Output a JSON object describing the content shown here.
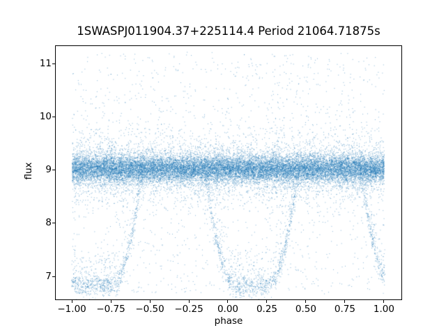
{
  "chart_data": {
    "type": "scatter",
    "title": "1SWASPJ011904.37+225114.4 Period 21064.71875s",
    "xlabel": "phase",
    "ylabel": "flux",
    "xlim": [
      -1.103,
      1.112
    ],
    "ylim": [
      6.57,
      11.33
    ],
    "grid": false,
    "legend": "none",
    "xticks": {
      "values": [
        -1.0,
        -0.75,
        -0.5,
        -0.25,
        0.0,
        0.25,
        0.5,
        0.75,
        1.0
      ],
      "labels": [
        "−1.00",
        "−0.75",
        "−0.50",
        "−0.25",
        "0.00",
        "0.25",
        "0.50",
        "0.75",
        "1.00"
      ]
    },
    "yticks": {
      "values": [
        7,
        8,
        9,
        10,
        11
      ],
      "labels": [
        "7",
        "8",
        "9",
        "10",
        "11"
      ]
    },
    "marker_color": "#1f77b4",
    "marker_alpha": 0.55,
    "marker_size_px": 1,
    "point_generator": {
      "seed": 20240119,
      "band": {
        "count": 21000,
        "phase_min": -1.0,
        "phase_max": 1.0,
        "flux_mean": 9.03,
        "flux_sigma_core": 0.13,
        "flux_sigma_tail": 0.32,
        "tail_fraction": 0.22
      },
      "noise": {
        "count": 1500,
        "phase_min": -1.0,
        "phase_max": 1.0,
        "flux_min": 6.68,
        "flux_max": 11.22
      },
      "eclipses": [
        {
          "center": 0.15,
          "min_flux": 6.82,
          "out_flux": 9.0,
          "half_width": 0.3,
          "flat_half_width": 0.1,
          "count": 1100
        },
        {
          "center": -0.85,
          "min_flux": 6.82,
          "out_flux": 9.0,
          "half_width": 0.3,
          "flat_half_width": 0.1,
          "count": 1100
        },
        {
          "center": 1.15,
          "min_flux": 6.82,
          "out_flux": 9.0,
          "half_width": 0.3,
          "flat_half_width": 0.1,
          "count": 1100
        }
      ],
      "eclipse_scatter_sigma": 0.1,
      "eclipse_fuzz_fraction": 0.25,
      "eclipse_fuzz_max": 0.6
    }
  }
}
